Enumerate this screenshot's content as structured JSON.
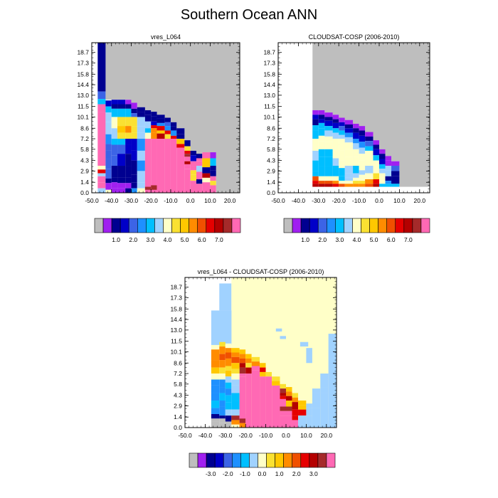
{
  "title": "Southern Ocean ANN",
  "palettes": {
    "absolute": [
      "#bebebe",
      "#a020f0",
      "#000090",
      "#0000c8",
      "#3c64e6",
      "#1e90ff",
      "#00bfff",
      "#a0d2ff",
      "#ffffc8",
      "#fae132",
      "#ffc800",
      "#ff8c00",
      "#f05000",
      "#e60000",
      "#b40000",
      "#a52a2a",
      "#ff69b4"
    ],
    "difference": [
      "#bebebe",
      "#a020f0",
      "#000090",
      "#0000c8",
      "#3c64e6",
      "#1e90ff",
      "#00bfff",
      "#a0d2ff",
      "#ffffc8",
      "#fae132",
      "#ffc800",
      "#ff8c00",
      "#f05000",
      "#e60000",
      "#b40000",
      "#a52a2a",
      "#ff69b4"
    ]
  },
  "chart_data": [
    {
      "type": "heatmap",
      "title": "vres_L064",
      "x_ticks": [
        "-50.0",
        "-40.0",
        "-30.0",
        "-20.0",
        "-10.0",
        "0.0",
        "10.0",
        "20.0"
      ],
      "y_ticks": [
        "0.0",
        "1.4",
        "2.9",
        "4.3",
        "5.8",
        "7.2",
        "8.6",
        "10.1",
        "11.5",
        "13.0",
        "14.4",
        "15.8",
        "17.3",
        "18.7"
      ],
      "xlim": [
        -50,
        25
      ],
      "ylim": [
        0,
        20
      ],
      "colorbar": {
        "palette": "absolute",
        "labels": [
          "1.0",
          "2.0",
          "3.0",
          "4.0",
          "5.0",
          "6.0",
          "7.0"
        ]
      },
      "background_index": 0,
      "missing": "lightgray",
      "columns": [
        {
          "x": -45,
          "rows": [
            "13.5-20:2",
            "12.5-13.5:4",
            "11.5-12.5:6",
            "10.5-11.5:16",
            "3.5-10.5:16",
            "2.5-3.5:13",
            "1.5-2.5:7",
            "0.5-1.5:16",
            "0-0.5:8"
          ]
        },
        {
          "x": -40,
          "rows": [
            "11.5-12.5:3",
            "10.5-11.5:6",
            "9.5-10.5:7",
            "8.5-9.5:7",
            "6.5-8.5:5",
            "5.5-6.5:4",
            "4.5-5.5:4",
            "3.5-4.5:4",
            "2.5-3.5:4",
            "1.5-2.5:2",
            "0.5-1.5:1",
            "0-0.5:8"
          ]
        }
      ],
      "note": "cell values are colour indices into the colorbar palette"
    },
    {
      "type": "heatmap",
      "title": "CLOUDSAT-COSP (2006-2010)",
      "x_ticks": [
        "-50.0",
        "-40.0",
        "-30.0",
        "-20.0",
        "-10.0",
        "0.0",
        "10.0",
        "20.0"
      ],
      "y_ticks": [
        "0.0",
        "1.4",
        "2.9",
        "4.3",
        "5.8",
        "7.2",
        "8.6",
        "10.1",
        "11.5",
        "13.0",
        "14.4",
        "15.8",
        "17.3",
        "18.7"
      ],
      "xlim": [
        -50,
        25
      ],
      "ylim": [
        0,
        20
      ],
      "colorbar": {
        "palette": "absolute",
        "labels": [
          "1.0",
          "2.0",
          "3.0",
          "4.0",
          "5.0",
          "6.0",
          "7.0"
        ]
      }
    },
    {
      "type": "heatmap",
      "title": "vres_L064 - CLOUDSAT-COSP (2006-2010)",
      "x_ticks": [
        "-50.0",
        "-40.0",
        "-30.0",
        "-20.0",
        "-10.0",
        "0.0",
        "10.0",
        "20.0"
      ],
      "y_ticks": [
        "0.0",
        "1.4",
        "2.9",
        "4.3",
        "5.8",
        "7.2",
        "8.6",
        "10.1",
        "11.5",
        "13.0",
        "14.4",
        "15.8",
        "17.3",
        "18.7"
      ],
      "xlim": [
        -50,
        25
      ],
      "ylim": [
        0,
        20
      ],
      "colorbar": {
        "palette": "difference",
        "labels": [
          "-3.0",
          "-2.0",
          "-1.0",
          "0.0",
          "1.0",
          "2.0",
          "3.0"
        ]
      }
    }
  ]
}
